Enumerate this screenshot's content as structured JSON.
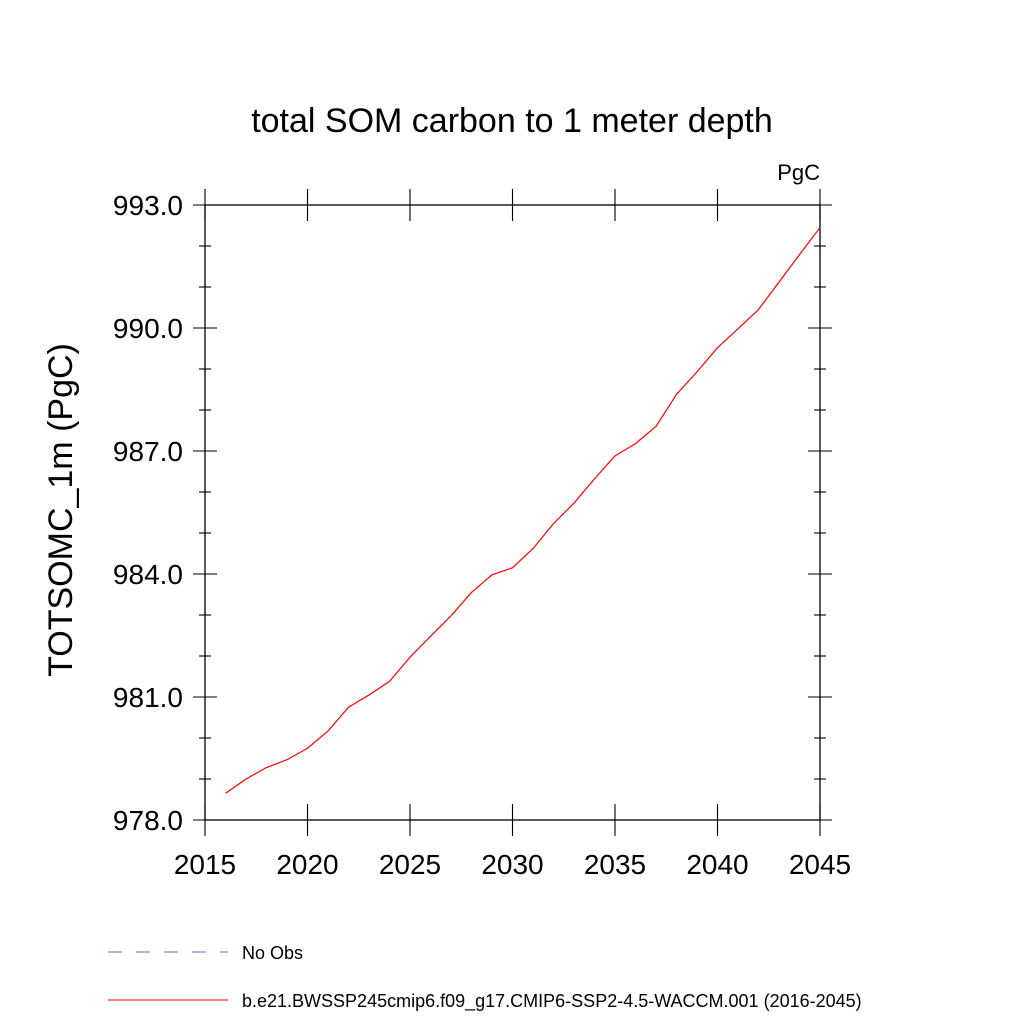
{
  "chart_data": {
    "type": "line",
    "title": "total SOM carbon to 1 meter depth",
    "units_label": "PgC",
    "ylabel": "TOTSOMC_1m  (PgC)",
    "xlabel": "",
    "xlim": [
      2015,
      2045
    ],
    "ylim": [
      978.0,
      993.0
    ],
    "x_ticks": [
      2015,
      2020,
      2025,
      2030,
      2035,
      2040,
      2045
    ],
    "y_ticks": [
      978.0,
      981.0,
      984.0,
      987.0,
      990.0,
      993.0
    ],
    "x_tick_labels": [
      "2015",
      "2020",
      "2025",
      "2030",
      "2035",
      "2040",
      "2045"
    ],
    "y_tick_labels": [
      "978.0",
      "981.0",
      "984.0",
      "987.0",
      "990.0",
      "993.0"
    ],
    "grid": false,
    "legend_position": "bottom",
    "series": [
      {
        "name": "b.e21.BWSSP245cmip6.f09_g17.CMIP6-SSP2-4.5-WACCM.001 (2016-2045)",
        "color": "#ff0000",
        "style": "solid",
        "x": [
          2016,
          2017,
          2018,
          2019,
          2020,
          2021,
          2022,
          2023,
          2024,
          2025,
          2026,
          2027,
          2028,
          2029,
          2030,
          2031,
          2032,
          2033,
          2034,
          2035,
          2036,
          2037,
          2038,
          2039,
          2040,
          2041,
          2042,
          2043,
          2044,
          2045
        ],
        "y": [
          978.65,
          979.0,
          979.28,
          979.47,
          979.75,
          980.17,
          980.75,
          981.05,
          981.38,
          981.97,
          982.48,
          982.98,
          983.55,
          983.98,
          984.15,
          984.62,
          985.23,
          985.73,
          986.32,
          986.88,
          987.18,
          987.6,
          988.38,
          988.93,
          989.52,
          989.98,
          990.45,
          991.12,
          991.79,
          992.45
        ]
      }
    ],
    "legend": [
      {
        "label": "No Obs",
        "color": "#6666cc",
        "style": "dashed"
      },
      {
        "label": "b.e21.BWSSP245cmip6.f09_g17.CMIP6-SSP2-4.5-WACCM.001 (2016-2045)",
        "color": "#ff0000",
        "style": "solid"
      }
    ]
  }
}
